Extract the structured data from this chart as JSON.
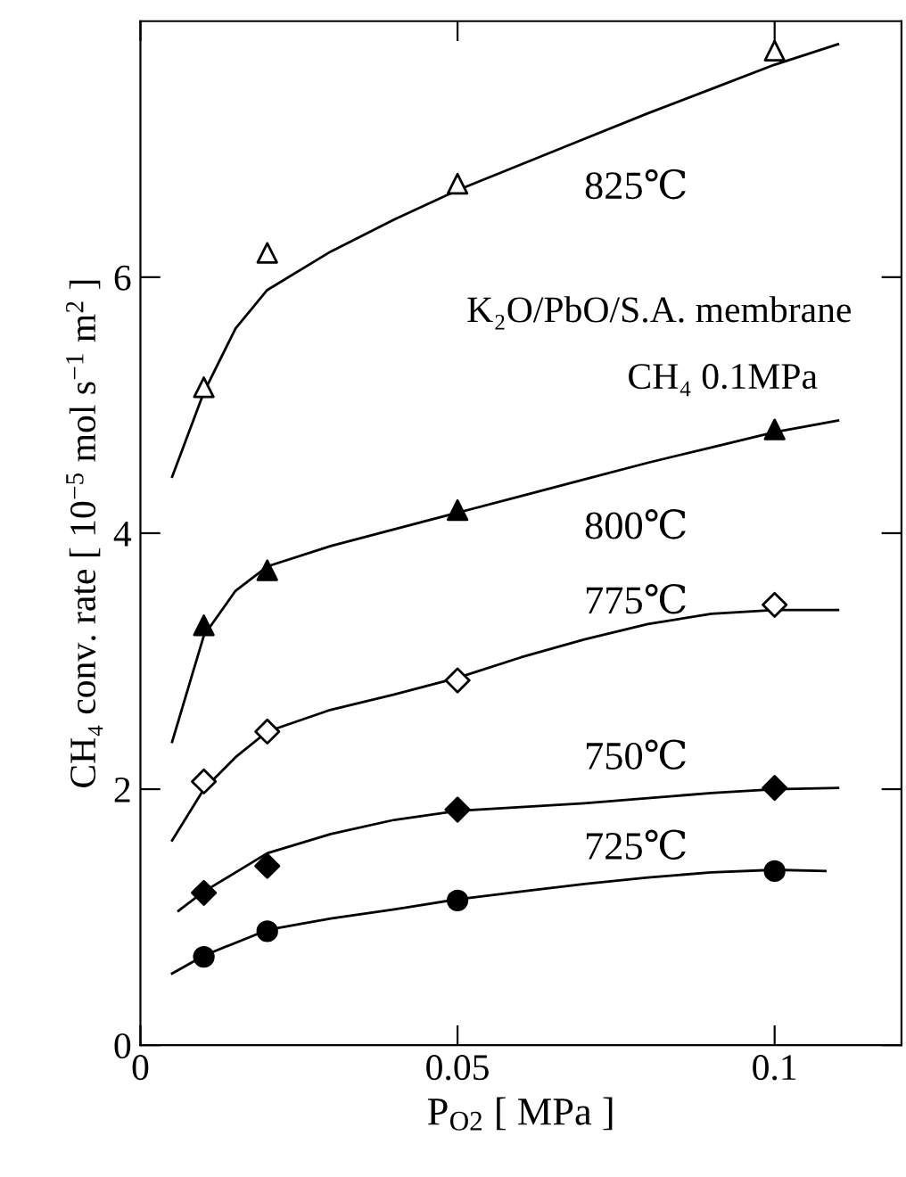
{
  "chart_data": {
    "type": "scatter",
    "xlabel": "P$_{O2}$ [ MPa ]",
    "ylabel": "CH₄ conv. rate [ 10$^{−5}$ mol s$^{−1}$ m$^{2}$ ]",
    "xlim": [
      0,
      0.12
    ],
    "ylim": [
      0,
      8
    ],
    "xticks": [
      0,
      0.05,
      0.1
    ],
    "yticks": [
      0,
      2,
      4,
      6
    ],
    "grid": false,
    "legend": false,
    "annotations": [
      "K₂O/PbO/S.A. membrane",
      "CH₄ 0.1MPa",
      "825℃",
      "800℃",
      "775℃",
      "750℃",
      "725℃"
    ],
    "series": [
      {
        "marker": "triangle",
        "color": "#ffffff",
        "x": [
          0.01,
          0.02,
          0.05,
          0.1
        ],
        "values": [
          5.14,
          6.19,
          6.73,
          7.77
        ]
      },
      {
        "marker": "triangle",
        "color": "#000000",
        "x": [
          0.01,
          0.02,
          0.05,
          0.1
        ],
        "values": [
          3.28,
          3.71,
          4.18,
          4.81
        ]
      },
      {
        "marker": "diamond",
        "color": "#ffffff",
        "x": [
          0.01,
          0.02,
          0.05,
          0.1
        ],
        "values": [
          2.06,
          2.45,
          2.85,
          3.44
        ]
      },
      {
        "marker": "diamond",
        "color": "#000000",
        "x": [
          0.01,
          0.02,
          0.05,
          0.1
        ],
        "values": [
          1.19,
          1.4,
          1.84,
          2.01
        ]
      },
      {
        "marker": "circle",
        "color": "#000000",
        "x": [
          0.01,
          0.02,
          0.05,
          0.1
        ],
        "values": [
          0.69,
          0.89,
          1.13,
          1.36
        ]
      },
      {
        "type": "line",
        "marker": "none",
        "color": "#000000",
        "x": [
          0.005,
          0.01,
          0.015,
          0.02,
          0.03,
          0.04,
          0.05,
          0.06,
          0.07,
          0.08,
          0.09,
          0.1,
          0.11
        ],
        "values": [
          4.44,
          5.1,
          5.6,
          5.9,
          6.2,
          6.45,
          6.68,
          6.88,
          7.08,
          7.28,
          7.47,
          7.66,
          7.82
        ]
      },
      {
        "type": "line",
        "marker": "none",
        "color": "#000000",
        "x": [
          0.005,
          0.01,
          0.015,
          0.02,
          0.03,
          0.04,
          0.05,
          0.06,
          0.07,
          0.08,
          0.09,
          0.1,
          0.11
        ],
        "values": [
          2.37,
          3.2,
          3.55,
          3.74,
          3.9,
          4.03,
          4.16,
          4.29,
          4.42,
          4.55,
          4.67,
          4.79,
          4.88
        ]
      },
      {
        "type": "line",
        "marker": "none",
        "color": "#000000",
        "x": [
          0.005,
          0.01,
          0.015,
          0.02,
          0.03,
          0.04,
          0.05,
          0.06,
          0.07,
          0.08,
          0.09,
          0.1,
          0.11
        ],
        "values": [
          1.6,
          2.0,
          2.25,
          2.45,
          2.62,
          2.74,
          2.87,
          3.03,
          3.17,
          3.29,
          3.37,
          3.4,
          3.4
        ]
      },
      {
        "type": "line",
        "marker": "none",
        "color": "#000000",
        "x": [
          0.006,
          0.01,
          0.02,
          0.03,
          0.04,
          0.05,
          0.06,
          0.07,
          0.08,
          0.09,
          0.1,
          0.11
        ],
        "values": [
          1.05,
          1.2,
          1.5,
          1.65,
          1.76,
          1.83,
          1.86,
          1.89,
          1.93,
          1.97,
          2.0,
          2.01
        ]
      },
      {
        "type": "line",
        "marker": "none",
        "color": "#000000",
        "x": [
          0.005,
          0.01,
          0.02,
          0.03,
          0.04,
          0.05,
          0.06,
          0.07,
          0.08,
          0.09,
          0.1,
          0.108
        ],
        "values": [
          0.56,
          0.7,
          0.9,
          0.99,
          1.06,
          1.14,
          1.2,
          1.26,
          1.31,
          1.35,
          1.37,
          1.36
        ]
      }
    ]
  }
}
